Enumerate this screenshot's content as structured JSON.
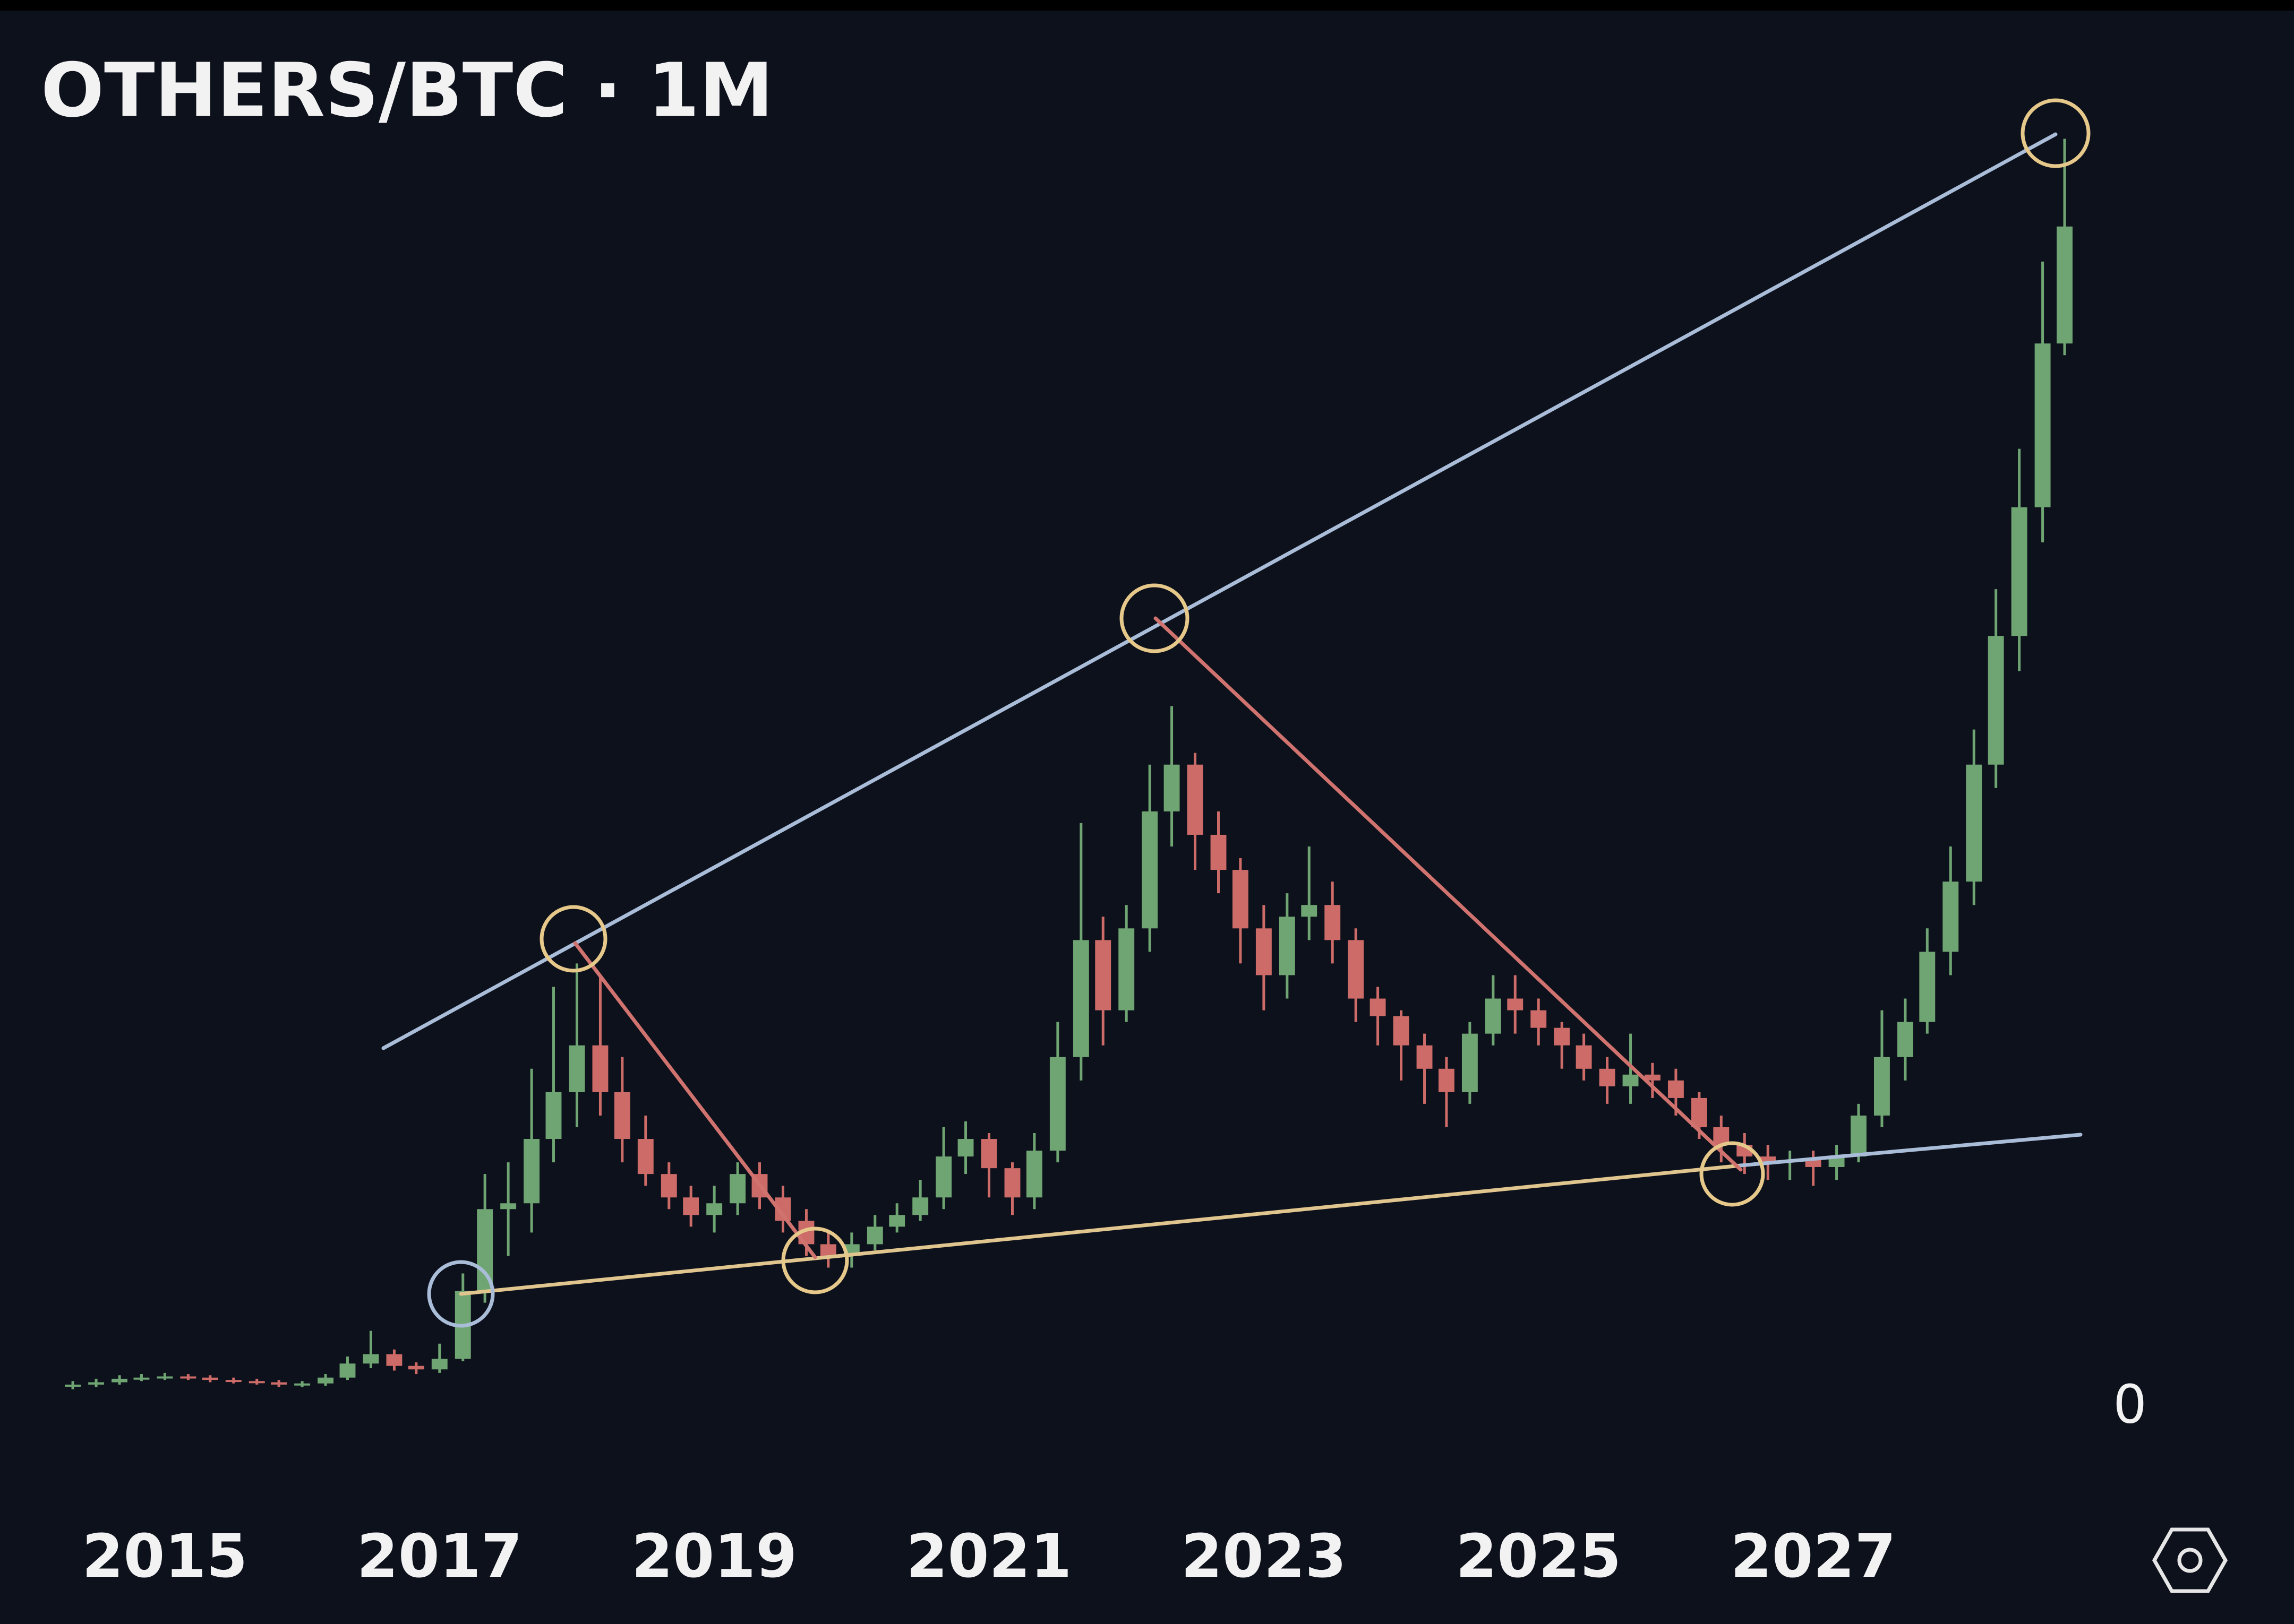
{
  "chart_data": {
    "type": "candlestick",
    "title": "OTHERS/BTC · 1M",
    "up_color": "#6fa572",
    "down_color": "#cc6b67",
    "xlim": [
      2013.8,
      2030.5
    ],
    "xticks": [
      2015,
      2017,
      2019,
      2021,
      2023,
      2025,
      2027
    ],
    "ylim": [
      0,
      120
    ],
    "yticks": [
      0
    ],
    "grid": false,
    "x": [
      2014.33,
      2014.5,
      2014.67,
      2014.83,
      2015.0,
      2015.17,
      2015.33,
      2015.5,
      2015.67,
      2015.83,
      2016.0,
      2016.17,
      2016.33,
      2016.5,
      2016.67,
      2016.83,
      2017.0,
      2017.17,
      2017.33,
      2017.5,
      2017.67,
      2017.83,
      2018.0,
      2018.17,
      2018.33,
      2018.5,
      2018.67,
      2018.83,
      2019.0,
      2019.17,
      2019.33,
      2019.5,
      2019.67,
      2019.83,
      2020.0,
      2020.17,
      2020.33,
      2020.5,
      2020.67,
      2020.83,
      2021.0,
      2021.17,
      2021.33,
      2021.5,
      2021.67,
      2021.83,
      2022.0,
      2022.17,
      2022.33,
      2022.5,
      2022.67,
      2022.83,
      2023.0,
      2023.17,
      2023.33,
      2023.5,
      2023.67,
      2023.83,
      2024.0,
      2024.17,
      2024.33,
      2024.5,
      2024.67,
      2024.83,
      2025.0,
      2025.17,
      2025.33,
      2025.5,
      2025.67,
      2025.83,
      2026.0,
      2026.17,
      2026.33,
      2026.5,
      2026.67,
      2026.83,
      2027.0,
      2027.17,
      2027.33,
      2027.5,
      2027.67,
      2027.83,
      2028.0,
      2028.17,
      2028.33,
      2028.5,
      2028.67,
      2028.83
    ],
    "open": [
      1.9,
      2.0,
      2.2,
      2.5,
      2.6,
      2.7,
      2.6,
      2.4,
      2.3,
      2.2,
      2.0,
      2.1,
      2.6,
      3.8,
      4.6,
      3.6,
      3.3,
      4.2,
      10,
      17,
      17.5,
      23,
      27,
      31,
      27,
      23,
      20,
      18,
      16.5,
      17.5,
      20,
      18,
      16,
      14,
      13,
      14,
      15.5,
      16.5,
      18,
      21.5,
      23,
      20.5,
      18,
      22,
      30,
      40,
      34,
      41,
      51,
      55,
      49,
      46,
      41,
      37,
      42,
      43,
      40,
      35,
      33.5,
      31,
      29,
      27,
      32,
      35,
      34,
      32.5,
      31,
      29,
      27.5,
      28.5,
      28,
      26.5,
      24,
      22.5,
      21.5,
      21,
      21.2,
      20.6,
      21.5,
      25,
      30,
      33,
      39,
      45,
      55,
      66,
      77,
      91
    ],
    "high": [
      2.3,
      2.5,
      2.8,
      2.9,
      3.0,
      2.9,
      2.8,
      2.6,
      2.5,
      2.4,
      2.3,
      2.9,
      4.4,
      6.6,
      5.0,
      3.9,
      5.5,
      11.5,
      20,
      21,
      29,
      36,
      38,
      37,
      30,
      25,
      21,
      19,
      19,
      21,
      21,
      19,
      17,
      15,
      15,
      16.5,
      17.5,
      19.5,
      24,
      24.5,
      23.5,
      21,
      23.5,
      33,
      50,
      42,
      43,
      55,
      60,
      56,
      51,
      47,
      43,
      44,
      48,
      45,
      41,
      36,
      34,
      32,
      30,
      33,
      37,
      37,
      35,
      33,
      32,
      30,
      32,
      29.5,
      29,
      27,
      25,
      23.5,
      22.5,
      22,
      22,
      22.5,
      26,
      34,
      35,
      41,
      48,
      58,
      70,
      82,
      98,
      108.5
    ],
    "low": [
      1.6,
      1.8,
      2.0,
      2.3,
      2.4,
      2.4,
      2.2,
      2.1,
      2.0,
      1.8,
      1.8,
      1.9,
      2.4,
      3.4,
      3.2,
      2.9,
      3.0,
      4.0,
      9,
      13,
      15,
      21,
      24,
      25,
      21,
      19,
      17,
      15.5,
      15,
      16.5,
      17,
      15,
      13,
      12,
      12,
      13.5,
      15,
      16,
      17,
      20,
      18,
      16.5,
      17,
      21,
      28,
      31,
      33,
      39,
      48,
      46,
      44,
      38,
      34,
      35,
      40,
      38,
      33,
      31,
      28,
      26,
      24,
      26,
      31,
      32,
      31,
      29,
      28,
      26,
      26,
      26.5,
      25,
      23,
      21,
      20,
      19.5,
      19.5,
      19,
      19.5,
      21,
      24,
      28,
      32,
      37,
      43,
      53,
      63,
      74,
      90
    ],
    "close": [
      2.0,
      2.2,
      2.5,
      2.6,
      2.7,
      2.6,
      2.4,
      2.3,
      2.2,
      2.0,
      2.1,
      2.6,
      3.8,
      4.6,
      3.6,
      3.3,
      4.2,
      10,
      17,
      17.5,
      23,
      27,
      31,
      27,
      23,
      20,
      18,
      16.5,
      17.5,
      20,
      18,
      16,
      14,
      13,
      14,
      15.5,
      16.5,
      18,
      21.5,
      23,
      20.5,
      18,
      22,
      30,
      40,
      34,
      41,
      51,
      55,
      49,
      46,
      41,
      37,
      42,
      43,
      40,
      35,
      33.5,
      31,
      29,
      27,
      32,
      35,
      34,
      32.5,
      31,
      29,
      27.5,
      28.5,
      28,
      26.5,
      24,
      22.5,
      21.5,
      21,
      21.2,
      20.6,
      21.5,
      25,
      30,
      33,
      39,
      45,
      55,
      66,
      77,
      91,
      101
    ]
  }
}
